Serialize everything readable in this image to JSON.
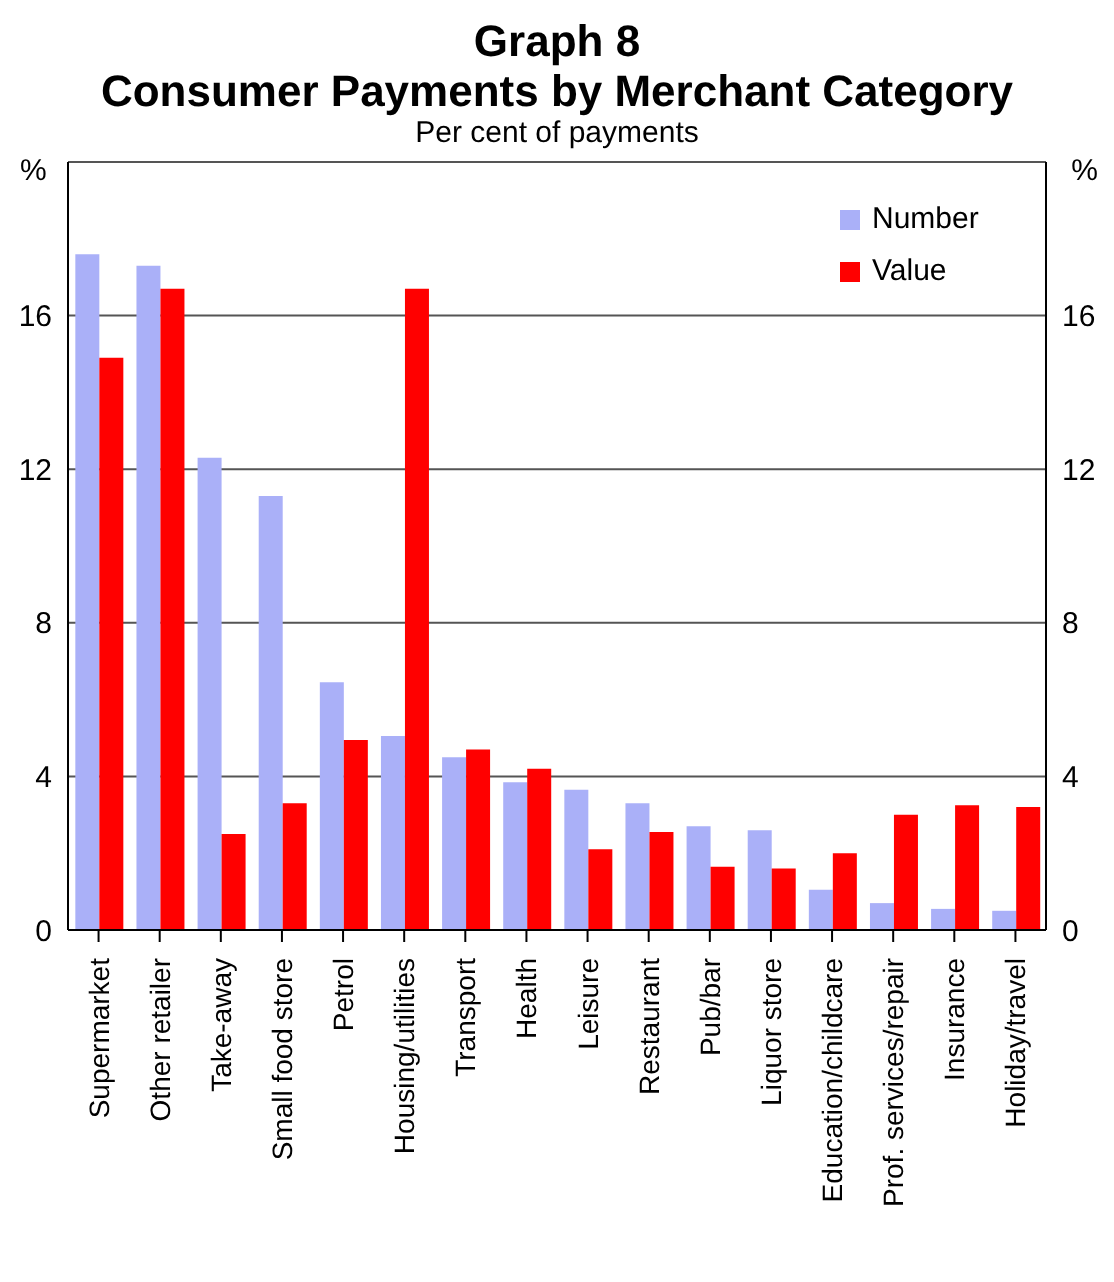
{
  "chart_data": {
    "type": "bar",
    "title": "Graph 8",
    "subtitle": "Consumer Payments by Merchant Category",
    "ylabel": "%",
    "y2label": "%",
    "annotations": [
      "Per cent of payments"
    ],
    "categories": [
      "Supermarket",
      "Other retailer",
      "Take-away",
      "Small food store",
      "Petrol",
      "Housing/utilities",
      "Transport",
      "Health",
      "Leisure",
      "Restaurant",
      "Pub/bar",
      "Liquor store",
      "Education/childcare",
      "Prof. services/repair",
      "Insurance",
      "Holiday/travel"
    ],
    "series": [
      {
        "name": "Number",
        "color": "#aab0f8",
        "values": [
          17.6,
          17.3,
          12.3,
          11.3,
          6.45,
          5.05,
          4.5,
          3.85,
          3.65,
          3.3,
          2.7,
          2.6,
          1.05,
          0.7,
          0.55,
          0.5
        ]
      },
      {
        "name": "Value",
        "color": "#ff0000",
        "values": [
          14.9,
          16.7,
          2.5,
          3.3,
          4.95,
          16.7,
          4.7,
          4.2,
          2.1,
          2.55,
          1.65,
          1.6,
          2.0,
          3.0,
          3.25,
          3.2
        ]
      }
    ],
    "ylim": [
      0,
      20
    ],
    "yticks": [
      0,
      4,
      8,
      12,
      16
    ],
    "y2lim": [
      0,
      20
    ],
    "y2ticks": [
      0,
      4,
      8,
      12,
      16
    ],
    "grid": "y",
    "legend": "top right"
  }
}
